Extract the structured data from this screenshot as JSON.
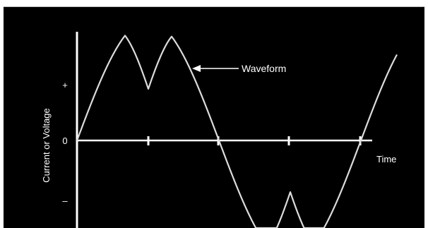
{
  "diagram": {
    "title": "",
    "callout_label": "Waveform",
    "x_axis_label": "Time",
    "y_axis_label": "Current or Voltage",
    "y_ticks": [
      "+",
      "0",
      "–"
    ]
  },
  "colors": {
    "background": "#000000",
    "foreground": "#ffffff",
    "frame": "#ffffff",
    "waveform": "#dcdcdc"
  }
}
